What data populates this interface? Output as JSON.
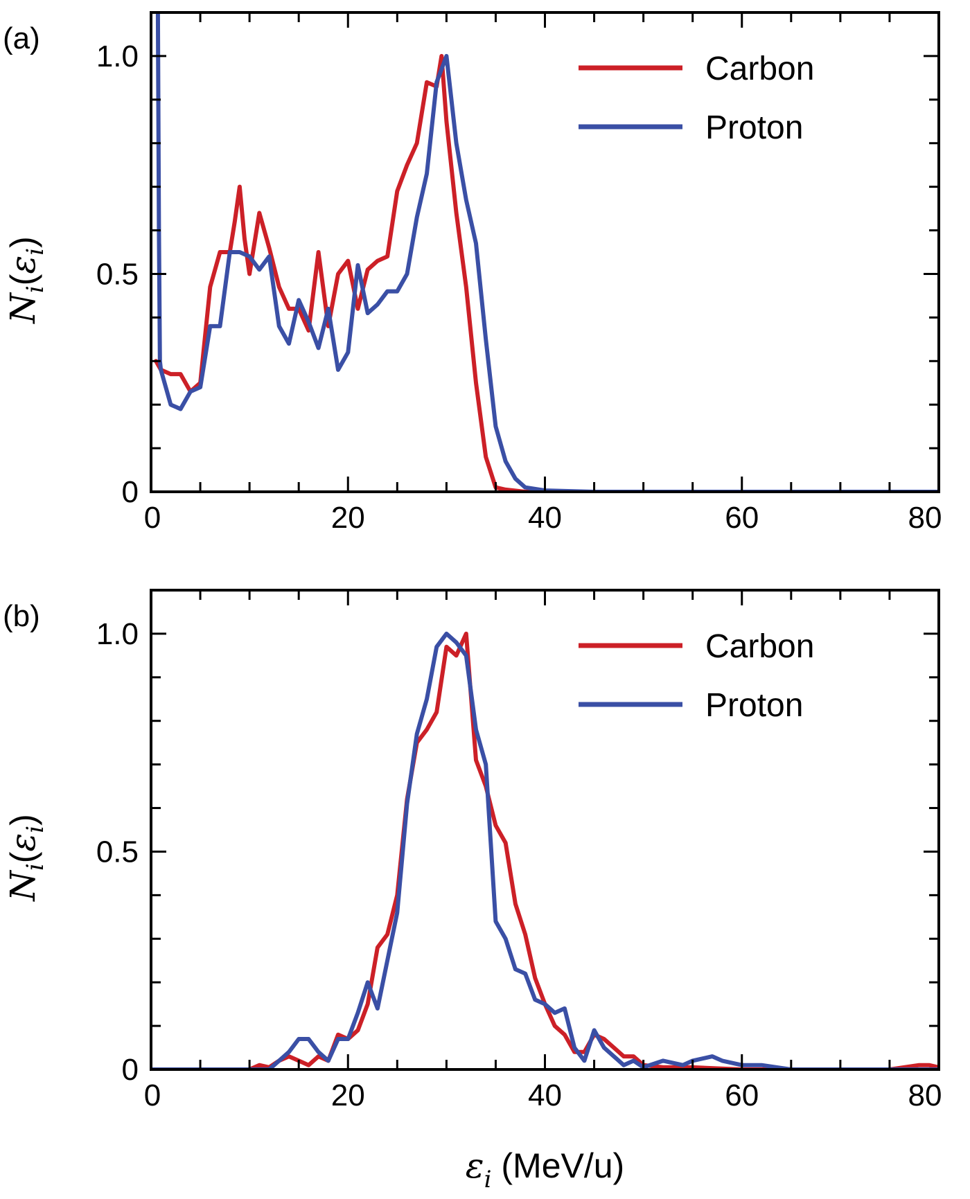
{
  "chart_data": [
    {
      "panel_label": "(a)",
      "type": "line",
      "xlim": [
        0,
        80
      ],
      "ylim": [
        0,
        1.1
      ],
      "xticks": [
        0,
        20,
        40,
        60,
        80
      ],
      "xtick_labels": [
        "0",
        "20",
        "40",
        "60",
        "80"
      ],
      "yticks": [
        0,
        0.5,
        1.0
      ],
      "ytick_labels": [
        "0",
        "0.5",
        "1.0"
      ],
      "ylabel": {
        "main": "N",
        "sub": "i",
        "paren_open": "(",
        "eps": "ε",
        "eps_sub": "i",
        "paren_close": ")"
      },
      "legend_position": "top-right",
      "series": [
        {
          "name": "Carbon",
          "color": "#cc2027",
          "x": [
            0.5,
            1,
            2,
            3,
            4,
            5,
            6,
            7,
            8,
            8.5,
            9,
            9.5,
            10,
            11,
            12,
            13,
            14,
            15,
            16,
            17,
            18,
            19,
            20,
            21,
            22,
            23,
            24,
            25,
            26,
            27,
            28,
            29,
            29.5,
            30,
            31,
            32,
            33,
            34,
            35,
            36,
            38,
            40,
            45,
            50,
            60,
            70,
            80
          ],
          "y": [
            0.3,
            0.28,
            0.27,
            0.27,
            0.23,
            0.25,
            0.47,
            0.55,
            0.55,
            0.62,
            0.7,
            0.58,
            0.5,
            0.64,
            0.56,
            0.47,
            0.42,
            0.42,
            0.37,
            0.55,
            0.38,
            0.5,
            0.53,
            0.42,
            0.51,
            0.53,
            0.54,
            0.69,
            0.75,
            0.8,
            0.94,
            0.93,
            1.0,
            0.85,
            0.64,
            0.47,
            0.25,
            0.08,
            0.01,
            0.005,
            0,
            0,
            0,
            0,
            0,
            0,
            0
          ]
        },
        {
          "name": "Proton",
          "color": "#3a4fa5",
          "x": [
            0.7,
            0.8,
            0.9,
            1.0,
            2,
            3,
            4,
            5,
            6,
            7,
            8,
            9,
            10,
            11,
            12,
            13,
            14,
            15,
            16,
            17,
            18,
            19,
            20,
            21,
            22,
            23,
            24,
            25,
            26,
            27,
            28,
            29,
            30,
            31,
            32,
            33,
            34,
            35,
            36,
            37,
            38,
            40,
            45,
            50,
            60,
            70,
            80
          ],
          "y": [
            1.1,
            0.6,
            0.3,
            0.28,
            0.2,
            0.19,
            0.23,
            0.24,
            0.38,
            0.38,
            0.55,
            0.55,
            0.54,
            0.51,
            0.54,
            0.38,
            0.34,
            0.44,
            0.39,
            0.33,
            0.42,
            0.28,
            0.32,
            0.52,
            0.41,
            0.43,
            0.46,
            0.46,
            0.5,
            0.63,
            0.73,
            0.94,
            1.0,
            0.8,
            0.67,
            0.57,
            0.35,
            0.15,
            0.07,
            0.03,
            0.01,
            0.003,
            0,
            0,
            0,
            0,
            0
          ]
        }
      ]
    },
    {
      "panel_label": "(b)",
      "type": "line",
      "xlim": [
        0,
        80
      ],
      "ylim": [
        0,
        1.1
      ],
      "xticks": [
        0,
        20,
        40,
        60,
        80
      ],
      "xtick_labels": [
        "0",
        "20",
        "40",
        "60",
        "80"
      ],
      "yticks": [
        0,
        0.5,
        1.0
      ],
      "ytick_labels": [
        "0",
        "0.5",
        "1.0"
      ],
      "xlabel": {
        "eps": "ε",
        "eps_sub": "i",
        "rest": " (MeV/u)"
      },
      "ylabel": {
        "main": "N",
        "sub": "i",
        "paren_open": "(",
        "eps": "ε",
        "eps_sub": "i",
        "paren_close": ")"
      },
      "legend_position": "top-right",
      "series": [
        {
          "name": "Carbon",
          "color": "#cc2027",
          "x": [
            0,
            10,
            11,
            12,
            13,
            14,
            15,
            16,
            17,
            18,
            19,
            20,
            21,
            22,
            23,
            24,
            25,
            26,
            27,
            28,
            29,
            30,
            31,
            32,
            33,
            34,
            35,
            36,
            37,
            38,
            39,
            40,
            41,
            42,
            43,
            44,
            45,
            46,
            47,
            48,
            49,
            50,
            52,
            55,
            60,
            65,
            70,
            75,
            78,
            79,
            80
          ],
          "y": [
            0,
            0,
            0.01,
            0.005,
            0.02,
            0.03,
            0.02,
            0.01,
            0.03,
            0.02,
            0.08,
            0.07,
            0.09,
            0.15,
            0.28,
            0.31,
            0.4,
            0.62,
            0.75,
            0.78,
            0.82,
            0.97,
            0.95,
            1.0,
            0.71,
            0.65,
            0.56,
            0.52,
            0.38,
            0.31,
            0.21,
            0.15,
            0.1,
            0.08,
            0.04,
            0.04,
            0.08,
            0.07,
            0.05,
            0.03,
            0.03,
            0.01,
            0.005,
            0.005,
            0,
            0,
            0,
            0,
            0.01,
            0.01,
            0.005
          ]
        },
        {
          "name": "Proton",
          "color": "#3a4fa5",
          "x": [
            0,
            10,
            11,
            12,
            13,
            14,
            15,
            16,
            17,
            18,
            19,
            20,
            21,
            22,
            23,
            24,
            25,
            26,
            27,
            28,
            29,
            30,
            31,
            32,
            33,
            34,
            35,
            36,
            37,
            38,
            39,
            40,
            41,
            42,
            43,
            44,
            45,
            46,
            47,
            48,
            49,
            50,
            52,
            54,
            55,
            57,
            58,
            60,
            62,
            65,
            70,
            80
          ],
          "y": [
            0,
            0,
            0,
            0,
            0.02,
            0.04,
            0.07,
            0.07,
            0.04,
            0.02,
            0.07,
            0.07,
            0.13,
            0.2,
            0.14,
            0.25,
            0.36,
            0.61,
            0.77,
            0.85,
            0.97,
            1.0,
            0.98,
            0.95,
            0.78,
            0.7,
            0.34,
            0.3,
            0.23,
            0.22,
            0.16,
            0.15,
            0.13,
            0.14,
            0.05,
            0.02,
            0.09,
            0.05,
            0.03,
            0.01,
            0.02,
            0.005,
            0.02,
            0.01,
            0.02,
            0.03,
            0.02,
            0.01,
            0.01,
            0,
            0,
            0
          ]
        }
      ]
    }
  ]
}
